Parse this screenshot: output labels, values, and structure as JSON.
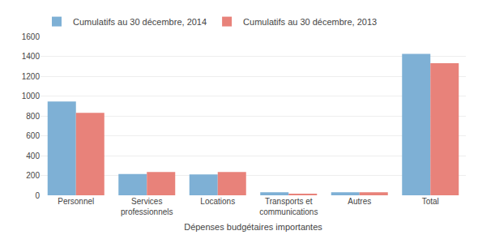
{
  "chart_data": {
    "type": "bar",
    "xlabel": "Dépenses budgétaires importantes",
    "categories": [
      "Personnel",
      "Services\nprofessionnels",
      "Locations",
      "Transports et\ncommunications",
      "Autres",
      "Total"
    ],
    "series": [
      {
        "name": "Cumulatifs au 30 décembre, 2014",
        "color": "#7EB0D5",
        "values": [
          945,
          215,
          210,
          30,
          30,
          1425
        ]
      },
      {
        "name": "Cumulatifs au 30 décembre, 2013",
        "color": "#E8827A",
        "values": [
          830,
          235,
          235,
          10,
          30,
          1330
        ]
      }
    ],
    "ylim": [
      0,
      1600
    ],
    "yticks": [
      0,
      200,
      400,
      600,
      800,
      1000,
      1200,
      1400,
      1600
    ],
    "grid": true,
    "legend": "top left"
  }
}
